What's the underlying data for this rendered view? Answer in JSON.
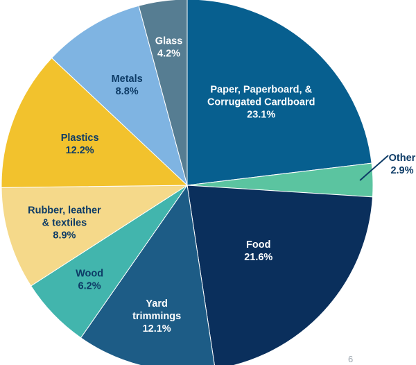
{
  "chart_data": {
    "type": "pie",
    "start_angle_deg": -90,
    "direction": "clockwise",
    "slices": [
      {
        "label_lines": [
          "Paper, Paperboard, &",
          "Corrugated Cardboard"
        ],
        "value_label": "23.1%",
        "value": 23.1,
        "color": "#075f8f",
        "text_color": "#ffffff"
      },
      {
        "label_lines": [
          "Other"
        ],
        "value_label": "2.9%",
        "value": 2.9,
        "color": "#5bc4a0",
        "text_color": "#0d3b66",
        "callout": true
      },
      {
        "label_lines": [
          "Food"
        ],
        "value_label": "21.6%",
        "value": 21.6,
        "color": "#0a2f5c",
        "text_color": "#ffffff"
      },
      {
        "label_lines": [
          "Yard",
          "trimmings"
        ],
        "value_label": "12.1%",
        "value": 12.1,
        "color": "#1d5c86",
        "text_color": "#ffffff"
      },
      {
        "label_lines": [
          "Wood"
        ],
        "value_label": "6.2%",
        "value": 6.2,
        "color": "#42b5ad",
        "text_color": "#0d3b66"
      },
      {
        "label_lines": [
          "Rubber, leather",
          "& textiles"
        ],
        "value_label": "8.9%",
        "value": 8.9,
        "color": "#f5d98a",
        "text_color": "#0d3b66"
      },
      {
        "label_lines": [
          "Plastics"
        ],
        "value_label": "12.2%",
        "value": 12.2,
        "color": "#f2c22d",
        "text_color": "#0d3b66"
      },
      {
        "label_lines": [
          "Metals"
        ],
        "value_label": "8.8%",
        "value": 8.8,
        "color": "#7fb4e2",
        "text_color": "#0d3b66"
      },
      {
        "label_lines": [
          "Glass"
        ],
        "value_label": "4.2%",
        "value": 4.2,
        "color": "#567d92",
        "text_color": "#ffffff"
      }
    ]
  },
  "footer": {
    "mark": "6"
  }
}
